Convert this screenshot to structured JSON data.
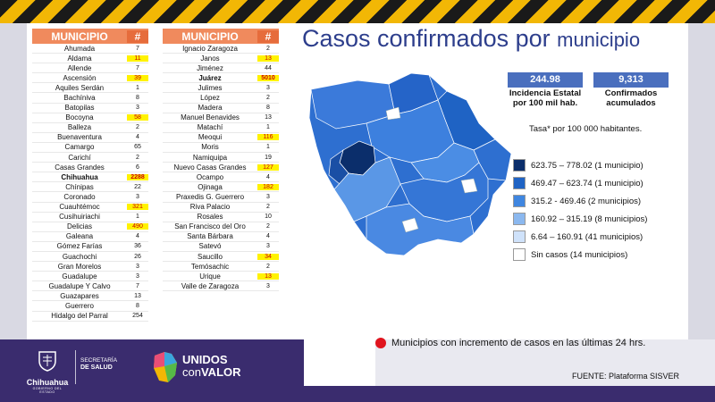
{
  "title_main": "Casos confirmados por ",
  "title_small": "municipio",
  "table_header": {
    "name": "MUNICIPIO",
    "num": "#"
  },
  "left_table": [
    {
      "name": "Ahumada",
      "num": "7"
    },
    {
      "name": "Aldama",
      "num": "11",
      "hl": true
    },
    {
      "name": "Allende",
      "num": "7"
    },
    {
      "name": "Ascensión",
      "num": "39",
      "hl": true
    },
    {
      "name": "Aquiles Serdán",
      "num": "1"
    },
    {
      "name": "Bachíniva",
      "num": "8"
    },
    {
      "name": "Batopilas",
      "num": "3"
    },
    {
      "name": "Bocoyna",
      "num": "58",
      "hl": true
    },
    {
      "name": "Balleza",
      "num": "2"
    },
    {
      "name": "Buenaventura",
      "num": "4"
    },
    {
      "name": "Camargo",
      "num": "65"
    },
    {
      "name": "Carichí",
      "num": "2"
    },
    {
      "name": "Casas Grandes",
      "num": "6"
    },
    {
      "name": "Chihuahua",
      "num": "2288",
      "hl": true,
      "bold": true
    },
    {
      "name": "Chínipas",
      "num": "22"
    },
    {
      "name": "Coronado",
      "num": "3"
    },
    {
      "name": "Cuauhtémoc",
      "num": "321",
      "hl": true
    },
    {
      "name": "Cusihuiriachi",
      "num": "1"
    },
    {
      "name": "Delicias",
      "num": "490",
      "hl": true
    },
    {
      "name": "Galeana",
      "num": "4"
    },
    {
      "name": "Gómez Farías",
      "num": "36"
    },
    {
      "name": "Guachochi",
      "num": "26"
    },
    {
      "name": "Gran Morelos",
      "num": "3"
    },
    {
      "name": "Guadalupe",
      "num": "3"
    },
    {
      "name": "Guadalupe Y Calvo",
      "num": "7"
    },
    {
      "name": "Guazapares",
      "num": "13"
    },
    {
      "name": "Guerrero",
      "num": "8"
    },
    {
      "name": "Hidalgo del Parral",
      "num": "254"
    }
  ],
  "right_table": [
    {
      "name": "Ignacio Zaragoza",
      "num": "2"
    },
    {
      "name": "Janos",
      "num": "13",
      "hl": true
    },
    {
      "name": "Jiménez",
      "num": "44"
    },
    {
      "name": "Juárez",
      "num": "5010",
      "hl": true,
      "bold": true
    },
    {
      "name": "Julimes",
      "num": "3"
    },
    {
      "name": "López",
      "num": "2"
    },
    {
      "name": "Madera",
      "num": "8"
    },
    {
      "name": "Manuel Benavides",
      "num": "13"
    },
    {
      "name": "Matachí",
      "num": "1"
    },
    {
      "name": "Meoqui",
      "num": "116",
      "hl": true
    },
    {
      "name": "Moris",
      "num": "1"
    },
    {
      "name": "Namiquipa",
      "num": "19"
    },
    {
      "name": "Nuevo Casas Grandes",
      "num": "127",
      "hl": true
    },
    {
      "name": "Ocampo",
      "num": "4"
    },
    {
      "name": "Ojinaga",
      "num": "182",
      "hl": true
    },
    {
      "name": "Praxedis G. Guerrero",
      "num": "3"
    },
    {
      "name": "Riva Palacio",
      "num": "2"
    },
    {
      "name": "Rosales",
      "num": "10"
    },
    {
      "name": "San Francisco del Oro",
      "num": "2"
    },
    {
      "name": "Santa Bárbara",
      "num": "4"
    },
    {
      "name": "Satevó",
      "num": "3"
    },
    {
      "name": "Saucillo",
      "num": "34",
      "hl": true
    },
    {
      "name": "Temósachic",
      "num": "2"
    },
    {
      "name": "Urique",
      "num": "13",
      "hl": true
    },
    {
      "name": "Valle de Zaragoza",
      "num": "3"
    }
  ],
  "stats": {
    "incidence_value": "244.98",
    "incidence_label": "Incidencia Estatal por 100 mil hab.",
    "confirmed_value": "9,313",
    "confirmed_label": "Confirmados acumulados",
    "tasa": "Tasa* por 100 000 habitantes."
  },
  "legend": [
    {
      "label": "623.75 – 778.02 (1 municipio)",
      "color": "#0b2e6b"
    },
    {
      "label": "469.47 – 623.74 (1 municipio)",
      "color": "#1f63c4"
    },
    {
      "label": "315.2  - 469.46 (2 municipios)",
      "color": "#3f86e0"
    },
    {
      "label": "160.92 – 315.19 (8 municipios)",
      "color": "#8bb8ef"
    },
    {
      "label": "6.64 – 160.91 (41 municipios)",
      "color": "#cfe2fa"
    },
    {
      "label": "Sin casos  (14 municipios)",
      "color": "#ffffff"
    }
  ],
  "note": "Municipios con incremento de casos en las últimas 24 hrs.",
  "source": "FUENTE: Plataforma SISVER",
  "footer": {
    "chihuahua": "Chihuahua",
    "gobierno": "GOBIERNO DEL ESTADO",
    "secretaria": "SECRETARÍA",
    "salud": "DE SALUD",
    "unidos": "UNIDOS",
    "con": "con",
    "valor": "VALOR"
  },
  "colors": {
    "map_dark": "#0b2e6b",
    "map_mid": "#2e6fd0",
    "map_light": "#5a97e6",
    "red_dot": "#e0141e"
  }
}
